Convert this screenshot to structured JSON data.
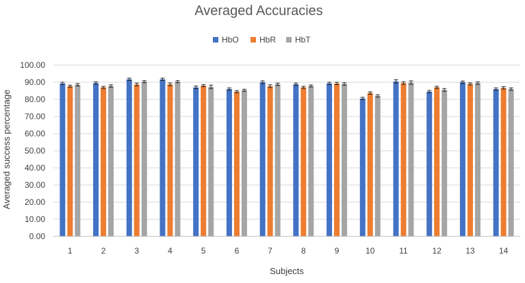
{
  "chart_data": {
    "type": "bar",
    "title": "Averaged Accuracies",
    "xlabel": "Subjects",
    "ylabel": "Averaged  success percentage",
    "ylim": [
      0,
      100
    ],
    "yticks": [
      "0.00",
      "10.00",
      "20.00",
      "30.00",
      "40.00",
      "50.00",
      "60.00",
      "70.00",
      "80.00",
      "90.00",
      "100.00"
    ],
    "categories": [
      "1",
      "2",
      "3",
      "4",
      "5",
      "6",
      "7",
      "8",
      "9",
      "10",
      "11",
      "12",
      "13",
      "14"
    ],
    "grid": true,
    "legend_position": "top",
    "error_bars": true,
    "series": [
      {
        "name": "HbO",
        "color": "#4472C4",
        "values": [
          89.3,
          89.5,
          91.7,
          91.7,
          87.0,
          86.0,
          90.0,
          88.8,
          89.3,
          80.5,
          90.5,
          84.5,
          90.0,
          86.0
        ],
        "errors": [
          0.7,
          0.7,
          0.7,
          0.7,
          0.8,
          0.7,
          0.8,
          0.7,
          0.7,
          0.7,
          1.0,
          0.7,
          0.7,
          0.7
        ]
      },
      {
        "name": "HbR",
        "color": "#ED7D31",
        "values": [
          87.7,
          87.0,
          88.7,
          88.8,
          88.0,
          84.5,
          87.7,
          87.0,
          89.3,
          83.7,
          89.5,
          87.0,
          89.0,
          86.7
        ],
        "errors": [
          0.6,
          0.6,
          0.8,
          0.8,
          0.6,
          0.6,
          0.8,
          0.6,
          0.7,
          0.7,
          0.7,
          0.6,
          0.6,
          0.7
        ]
      },
      {
        "name": "HbT",
        "color": "#A5A5A5",
        "values": [
          88.5,
          87.8,
          90.3,
          90.3,
          87.3,
          85.3,
          88.8,
          87.8,
          89.0,
          82.0,
          89.8,
          85.5,
          89.5,
          86.0
        ],
        "errors": [
          0.7,
          0.7,
          0.6,
          0.6,
          1.0,
          0.6,
          0.7,
          0.6,
          0.7,
          0.7,
          1.0,
          0.8,
          0.7,
          0.7
        ]
      }
    ]
  }
}
